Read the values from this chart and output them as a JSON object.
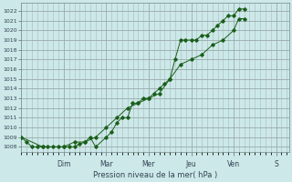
{
  "xlabel": "Pression niveau de la mer( hPa )",
  "ylim": [
    1007.5,
    1022.8
  ],
  "yticks": [
    1008,
    1009,
    1010,
    1011,
    1012,
    1013,
    1014,
    1015,
    1016,
    1017,
    1018,
    1019,
    1020,
    1021,
    1022
  ],
  "day_labels": [
    "Dim",
    "Mar",
    "Mer",
    "Jeu",
    "Ven",
    "S"
  ],
  "day_positions": [
    1.0,
    2.0,
    3.0,
    4.0,
    5.0,
    6.0
  ],
  "xlim": [
    0.0,
    6.3
  ],
  "bg_color": "#cce8e8",
  "grid_color": "#aabbbb",
  "line_color": "#1a5e1a",
  "line1_x": [
    0.0,
    0.12,
    0.25,
    0.37,
    0.5,
    0.62,
    0.75,
    0.87,
    1.0,
    1.12,
    1.25,
    1.37,
    1.5,
    1.62,
    1.75,
    2.0,
    2.12,
    2.25,
    2.37,
    2.5,
    2.62,
    2.75,
    2.87,
    3.0,
    3.12,
    3.25,
    3.37,
    3.5,
    3.62,
    3.75,
    3.87,
    4.0,
    4.12,
    4.25,
    4.37,
    4.5,
    4.62,
    4.75,
    4.87,
    5.0,
    5.12,
    5.25
  ],
  "line1_y": [
    1009.0,
    1008.5,
    1008.0,
    1008.0,
    1008.0,
    1008.0,
    1008.0,
    1008.0,
    1008.0,
    1008.0,
    1008.0,
    1008.3,
    1008.5,
    1009.0,
    1008.0,
    1009.0,
    1009.5,
    1010.5,
    1011.0,
    1011.0,
    1012.5,
    1012.5,
    1013.0,
    1013.0,
    1013.5,
    1014.0,
    1014.5,
    1015.0,
    1017.0,
    1019.0,
    1019.0,
    1019.0,
    1019.0,
    1019.5,
    1019.5,
    1020.0,
    1020.5,
    1021.0,
    1021.5,
    1021.5,
    1022.2,
    1022.2
  ],
  "line2_x": [
    0.0,
    0.5,
    1.0,
    1.25,
    1.5,
    1.75,
    2.0,
    2.25,
    2.5,
    2.75,
    3.0,
    3.25,
    3.5,
    3.75,
    4.0,
    4.25,
    4.5,
    4.75,
    5.0,
    5.12,
    5.25
  ],
  "line2_y": [
    1009.0,
    1008.0,
    1008.0,
    1008.5,
    1008.5,
    1009.0,
    1010.0,
    1011.0,
    1012.0,
    1012.5,
    1013.0,
    1013.5,
    1015.0,
    1016.5,
    1017.0,
    1017.5,
    1018.5,
    1019.0,
    1020.0,
    1021.2,
    1021.2
  ]
}
